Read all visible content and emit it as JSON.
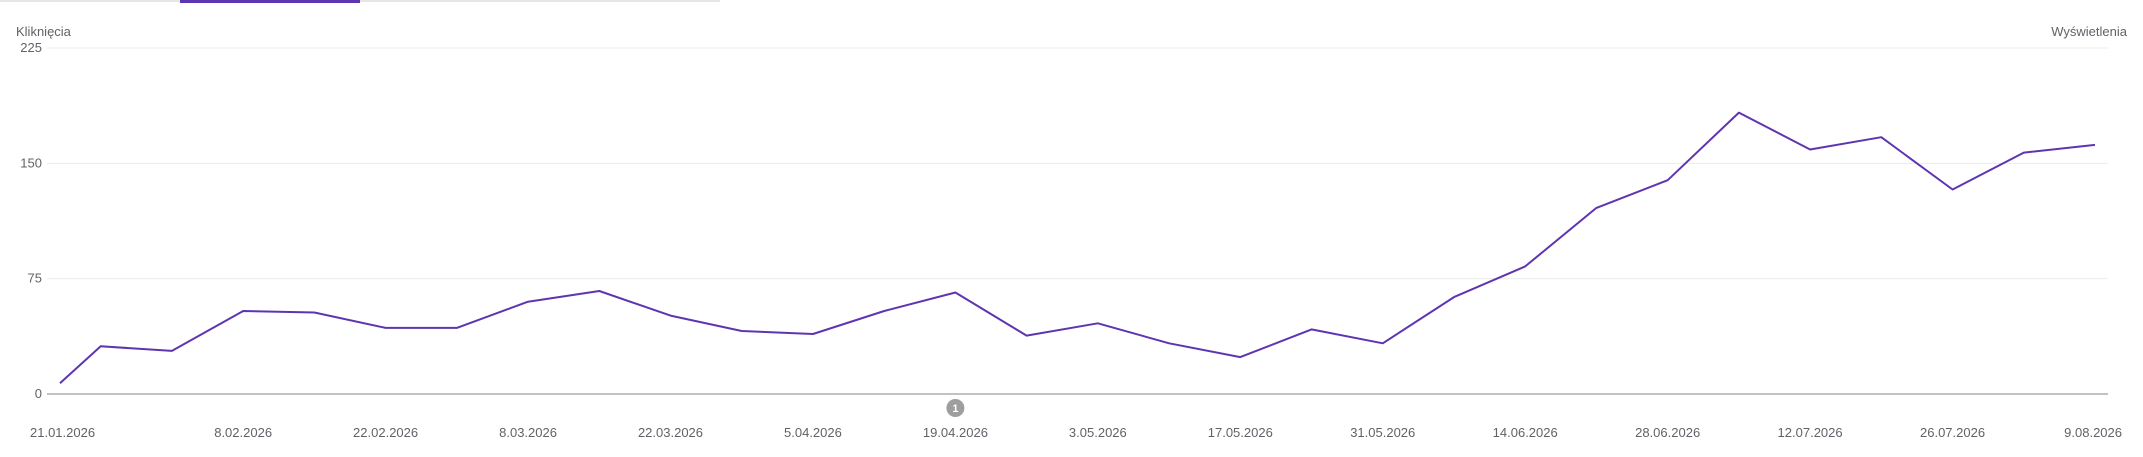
{
  "tabs": {
    "active_indicator_color": "#5e35b1"
  },
  "chart_data": {
    "type": "line",
    "ylabel": "Kliknięcia",
    "y2label": "Wyświetlenia",
    "ylim": [
      0,
      225
    ],
    "yticks": [
      0,
      75,
      150,
      225
    ],
    "xtick_labels": [
      "21.01.2026",
      "8.02.2026",
      "22.02.2026",
      "8.03.2026",
      "22.03.2026",
      "5.04.2026",
      "19.04.2026",
      "3.05.2026",
      "17.05.2026",
      "31.05.2026",
      "14.06.2026",
      "28.06.2026",
      "12.07.2026",
      "26.07.2026",
      "9.08.2026"
    ],
    "x": [
      "21.01.2026",
      "25.01.2026",
      "1.02.2026",
      "8.02.2026",
      "15.02.2026",
      "22.02.2026",
      "1.03.2026",
      "8.03.2026",
      "15.03.2026",
      "22.03.2026",
      "29.03.2026",
      "5.04.2026",
      "12.04.2026",
      "19.04.2026",
      "26.04.2026",
      "3.05.2026",
      "10.05.2026",
      "17.05.2026",
      "24.05.2026",
      "31.05.2026",
      "7.06.2026",
      "14.06.2026",
      "21.06.2026",
      "28.06.2026",
      "5.07.2026",
      "12.07.2026",
      "19.07.2026",
      "26.07.2026",
      "2.08.2026",
      "9.08.2026"
    ],
    "series": [
      {
        "color": "#5e35b1",
        "values": [
          7,
          31,
          28,
          54,
          53,
          43,
          43,
          60,
          67,
          51,
          41,
          39,
          54,
          66,
          38,
          46,
          33,
          24,
          42,
          33,
          63,
          83,
          121,
          139,
          183,
          159,
          167,
          133,
          157,
          162
        ]
      }
    ],
    "annotations": [
      {
        "x": "19.04.2026",
        "label": "1"
      }
    ],
    "grid": true,
    "colors": {
      "line": "#5e35b1",
      "grid": "#ececec",
      "baseline": "#9e9e9e",
      "annotation": "#9e9e9e"
    }
  }
}
